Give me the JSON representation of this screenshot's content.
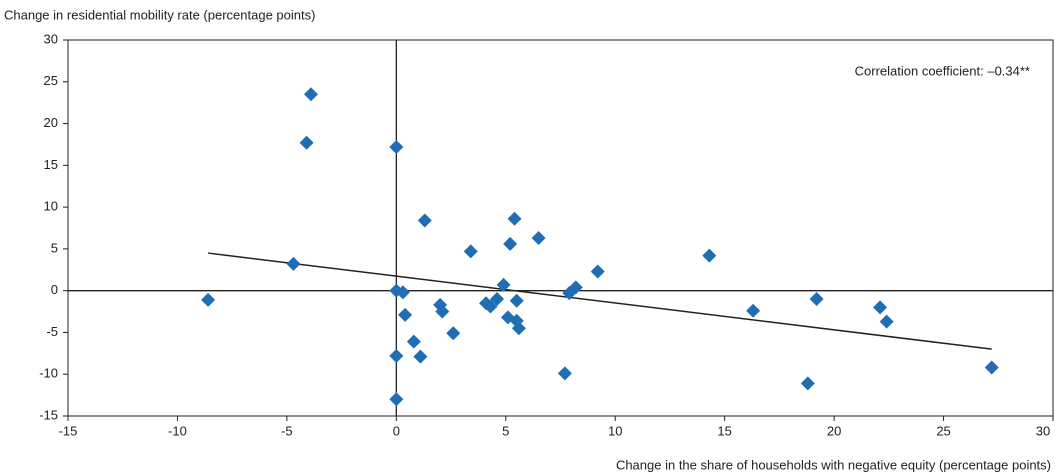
{
  "chart_data": {
    "type": "scatter",
    "ylabel": "Change in residential mobility rate (percentage points)",
    "xlabel": "Change in the share of households with negative equity (percentage points)",
    "annotation": "Correlation coefficient: –0.34**",
    "color": "#1f6db3",
    "x": [
      -8.6,
      -4.7,
      -4.1,
      -3.9,
      0,
      0,
      0,
      0,
      0.3,
      0.4,
      0.8,
      1.1,
      1.3,
      2.0,
      2.1,
      2.6,
      3.4,
      4.1,
      4.3,
      4.6,
      4.9,
      5.1,
      5.2,
      5.4,
      5.5,
      5.5,
      5.6,
      6.5,
      7.7,
      7.9,
      8.2,
      9.2,
      14.3,
      16.3,
      18.8,
      19.2,
      22.1,
      22.4,
      27.2
    ],
    "values": [
      -1.1,
      3.2,
      17.7,
      23.5,
      17.2,
      0,
      -7.8,
      -13.0,
      -0.2,
      -2.9,
      -6.1,
      -7.9,
      8.4,
      -1.7,
      -2.5,
      -5.1,
      4.7,
      -1.5,
      -1.9,
      -1.0,
      0.7,
      -3.2,
      5.6,
      8.6,
      -3.6,
      -1.2,
      -4.5,
      6.3,
      -9.9,
      -0.3,
      0.4,
      2.3,
      4.2,
      -2.4,
      -11.1,
      -1.0,
      -2.0,
      -3.7,
      -9.2
    ],
    "trend_line": {
      "x": [
        -8.6,
        27.2
      ],
      "y": [
        4.5,
        -7.0
      ]
    },
    "xlim": [
      -15,
      30
    ],
    "xticks": [
      -15,
      -10,
      -5,
      0,
      5,
      10,
      15,
      20,
      25,
      30
    ],
    "ylim": [
      -15,
      30
    ],
    "yticks": [
      -15,
      -10,
      -5,
      0,
      5,
      10,
      15,
      20,
      25,
      30
    ]
  }
}
